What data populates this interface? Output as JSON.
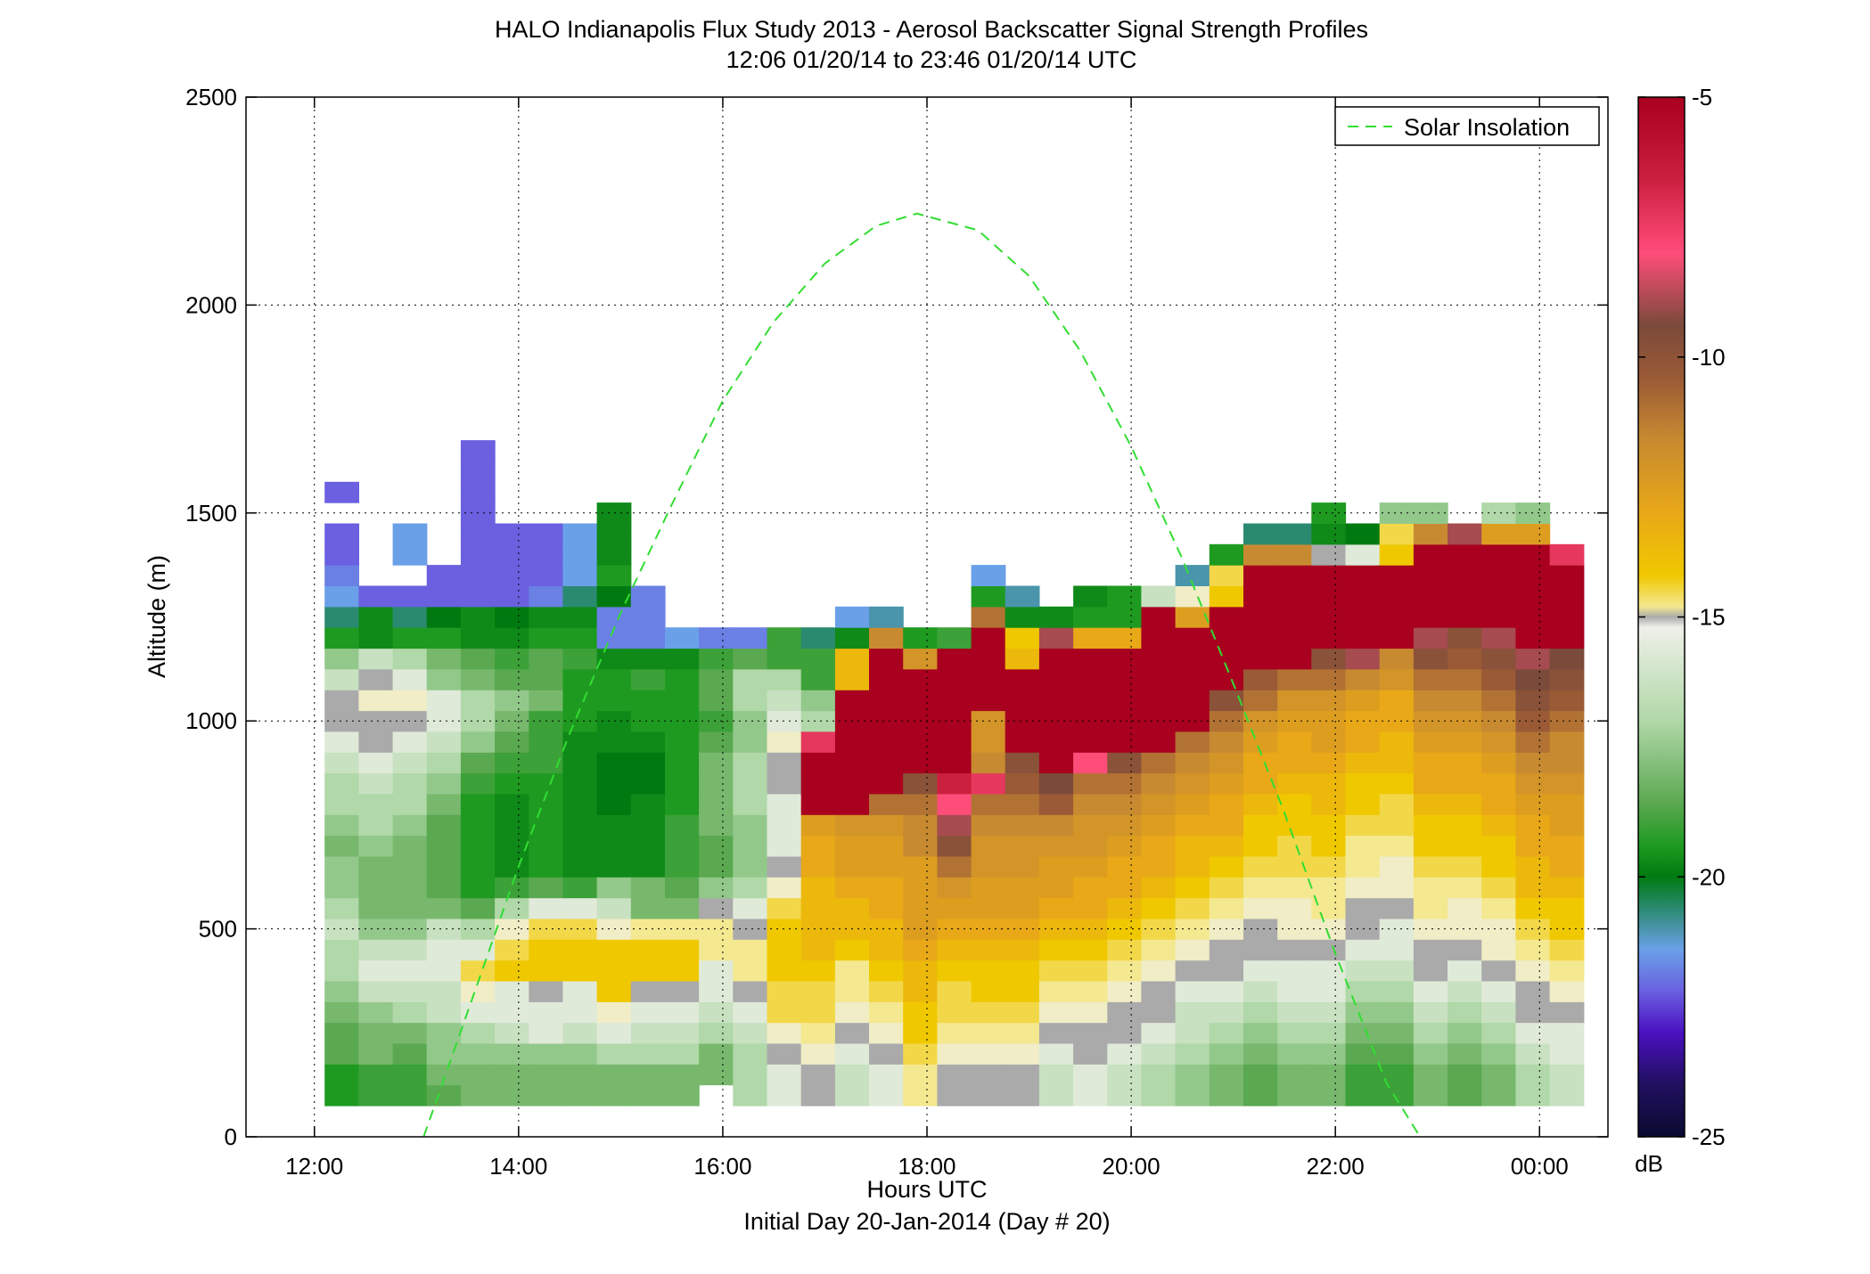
{
  "chart_data": {
    "type": "heatmap",
    "title": "HALO Indianapolis Flux Study 2013 - Aerosol Backscatter Signal Strength Profiles",
    "subtitle": "12:06 01/20/14 to 23:46 01/20/14  UTC",
    "xlabel": "Hours UTC",
    "xlabel2": "Initial Day 20-Jan-2014 (Day # 20)",
    "ylabel": "Altitude (m)",
    "xlim": [
      11.33,
      24.67
    ],
    "ylim": [
      0,
      2500
    ],
    "x_ticks": [
      12,
      14,
      16,
      18,
      20,
      22,
      24
    ],
    "x_tick_labels": [
      "12:00",
      "14:00",
      "16:00",
      "18:00",
      "20:00",
      "22:00",
      "00:00"
    ],
    "y_ticks": [
      0,
      500,
      1000,
      1500,
      2000,
      2500
    ],
    "y_tick_labels": [
      "0",
      "500",
      "1000",
      "1500",
      "2000",
      "2500"
    ],
    "grid": true,
    "legend": {
      "position": "top-right",
      "entries": [
        "Solar Insolation"
      ]
    },
    "colorbar": {
      "label": "dB",
      "range": [
        -25,
        -5
      ],
      "ticks": [
        -5,
        -10,
        -15,
        -20,
        -25
      ],
      "tick_labels": [
        "-5",
        "-10",
        "-15",
        "-20",
        "-25"
      ]
    },
    "series": [
      {
        "name": "Solar Insolation",
        "style": "dashed",
        "color": "#33dd33",
        "x": [
          13.07,
          13.5,
          14,
          14.5,
          15,
          15.5,
          16,
          16.5,
          17,
          17.5,
          17.9,
          18.5,
          19,
          19.5,
          20,
          20.5,
          21,
          21.5,
          22,
          22.5,
          22.83
        ],
        "y": [
          0,
          300,
          650,
          970,
          1260,
          1520,
          1770,
          1960,
          2100,
          2190,
          2220,
          2180,
          2070,
          1890,
          1660,
          1390,
          1090,
          780,
          440,
          130,
          0
        ]
      }
    ],
    "heatmap_grid": {
      "x_start": 12.1,
      "bin_hours": 0.3333,
      "y_start": 75,
      "bin_m": 50,
      "columns": [
        [
          -19,
          -19,
          -18,
          -18,
          -17.5,
          -17,
          -16.5,
          -16.5,
          -16,
          -16.5,
          -17,
          -17,
          -17.5,
          -17,
          -16.5,
          -16.5,
          -16,
          -15.5,
          -15,
          -15,
          -16,
          -17,
          -19,
          -20.5,
          -21.5,
          -22,
          -22.5,
          -22.5,
          null,
          -22.5
        ],
        [
          -18.5,
          -18.5,
          -17.5,
          -17.5,
          -17,
          -16,
          -15.5,
          -16,
          -17,
          -17.5,
          -17.5,
          -17.5,
          -17,
          -16.5,
          -16.5,
          -16,
          -15.5,
          -15,
          -15,
          -14.5,
          -15,
          -16,
          -19.5,
          -19.5,
          -22.5
        ],
        [
          -18.5,
          -18.5,
          -18,
          -17.5,
          -16.5,
          -16,
          -15.5,
          -16,
          -17,
          -17.5,
          -17.5,
          -17.5,
          -17.5,
          -17,
          -16.5,
          -16.5,
          -16,
          -15.5,
          -15,
          -14.5,
          -15.5,
          -16.5,
          -19,
          -20.5,
          -22.5,
          null,
          -21.5,
          -21.5
        ],
        [
          -18,
          -17.5,
          -17,
          -17,
          -16,
          -16,
          -15.5,
          -15.5,
          -16,
          -17.5,
          -18,
          -18,
          -18,
          -18,
          -17.5,
          -17,
          -16.5,
          -16,
          -15.5,
          -15.5,
          -17,
          -17.5,
          -19,
          -20,
          -22.5,
          -22.5
        ],
        [
          -17.5,
          -17.5,
          -17,
          -16.5,
          -15.5,
          -14.5,
          -13.5,
          -15.5,
          -16.5,
          -18,
          -19,
          -19,
          -19,
          -19,
          -19,
          -18.5,
          -18,
          -17,
          -16.5,
          -16.5,
          -17.5,
          -18,
          -19.5,
          -19.5,
          -22.5,
          -22.5,
          -22.5,
          -22.5,
          -22.5,
          -22.5,
          -22.5,
          -22.5
        ],
        [
          -17.5,
          -17.5,
          -17,
          -16,
          -15.5,
          -15.5,
          -13,
          -13.5,
          -14.5,
          -16.5,
          -18.5,
          -19.5,
          -19.5,
          -19.5,
          -19.5,
          -19,
          -18.5,
          -18,
          -17.5,
          -17,
          -18,
          -18.5,
          -19.5,
          -20,
          -22.5,
          -22.5,
          -22.5,
          -22.5
        ],
        [
          -17.5,
          -17.5,
          -17,
          -15.5,
          -15.5,
          -15,
          -13,
          -13,
          -13.5,
          -15.5,
          -18,
          -19,
          -19,
          -19,
          -19,
          -19,
          -18.5,
          -18.5,
          -18.5,
          -17.5,
          -18,
          -18,
          -19,
          -19.5,
          -22,
          -22.5,
          -22.5,
          -22.5
        ],
        [
          -17.5,
          -17.5,
          -17,
          -16,
          -15.5,
          -15.5,
          -13,
          -13,
          -13.5,
          -15.5,
          -18.5,
          -19.5,
          -19.5,
          -19.5,
          -19.5,
          -19.5,
          -19.5,
          -19.5,
          -19,
          -19,
          -19,
          -18.5,
          -19,
          -19.5,
          -20.5,
          -21.5,
          -21.5,
          -21.5
        ],
        [
          -17.5,
          -17.5,
          -16.5,
          -15.5,
          -14.5,
          -13,
          -13,
          -13,
          -14.5,
          -16,
          -17,
          -19.5,
          -19.5,
          -19.5,
          -20,
          -20,
          -20,
          -19.5,
          -19.5,
          -19,
          -19,
          -19.5,
          -22,
          -22,
          -20,
          -19,
          -19.5,
          -19.5,
          -19.5
        ],
        [
          -17.5,
          -17.5,
          -16.5,
          -16,
          -15.5,
          -15,
          -13,
          -13,
          -14,
          -17.5,
          -17.5,
          -19.5,
          -19.5,
          -19.5,
          -19.5,
          -20,
          -20,
          -19.5,
          -19,
          -19,
          -18.5,
          -19.5,
          -22,
          -22,
          -22
        ],
        [
          -17.5,
          -17.5,
          -16.5,
          -16,
          -15.5,
          -15,
          -13,
          -13,
          -14,
          -17.5,
          -18,
          -18.5,
          -18.5,
          -18.5,
          -19,
          -19,
          -19,
          -19,
          -19,
          -19,
          -19,
          -19.5,
          -21.5
        ],
        [
          null,
          -17.5,
          -17.5,
          -16.5,
          -16,
          -15.5,
          -15.5,
          -14,
          -14,
          -15,
          -17,
          -18,
          -18,
          -17.5,
          -17.5,
          -17.5,
          -17.5,
          -18,
          -18.5,
          -18,
          -18,
          -18.5,
          -22
        ],
        [
          -16.5,
          -16.5,
          -16.5,
          -16,
          -15.5,
          -15,
          -14,
          -14,
          -15,
          -15.5,
          -16.5,
          -17,
          -17,
          -17,
          -16.5,
          -16.5,
          -16.5,
          -17,
          -17,
          -16.5,
          -16.5,
          -18,
          -22
        ],
        [
          -15.5,
          -15.5,
          -15,
          -14.5,
          -13.5,
          -13.5,
          -13,
          -13,
          -13,
          -13.5,
          -14.5,
          -15,
          -15.5,
          -15.5,
          -15.5,
          -15,
          -15,
          -14.5,
          -15.5,
          -16,
          -16.5,
          -18.5,
          -18.5
        ],
        [
          -15,
          -15,
          -14.5,
          -14,
          -13.5,
          -13.5,
          -13,
          -12.5,
          -12.5,
          -12.5,
          -12.5,
          -12,
          -12,
          -11.5,
          -5,
          -5,
          -5,
          -6.5,
          -16.5,
          -17,
          -18.5,
          -18.5,
          -20.5
        ],
        [
          -16,
          -16,
          -15.5,
          -15,
          -14.5,
          -14,
          -14,
          -13,
          -12.5,
          -12.5,
          -12,
          -11.5,
          -11.5,
          -11,
          -5,
          -5,
          -5,
          -5,
          -5,
          -5,
          -12.5,
          -12.5,
          -19.5,
          -21.5
        ],
        [
          -15.5,
          -15.5,
          -15,
          -14.5,
          -14,
          -13.5,
          -13,
          -12.5,
          -12.5,
          -12,
          -12,
          -11.5,
          -11.5,
          -11,
          -10,
          -5,
          -5,
          -5,
          -5,
          -5,
          -5,
          -5,
          -10.5,
          -21
        ],
        [
          -14,
          -14,
          -13.5,
          -13,
          -13,
          -12.5,
          -12.5,
          -12,
          -11.5,
          -11.5,
          -11.5,
          -11.5,
          -10.5,
          -10.5,
          -10,
          -9,
          -5,
          -5,
          -5,
          -5,
          -5,
          -11,
          -19
        ],
        [
          -15,
          -15,
          -14.5,
          -14,
          -13.5,
          -13.5,
          -13,
          -12.5,
          -12,
          -11.5,
          -11,
          -10,
          -9,
          -8,
          -7,
          -6,
          -5,
          -5,
          -5,
          -5,
          -5,
          -5,
          -18.5
        ],
        [
          -15,
          -15,
          -14.5,
          -14,
          -13.5,
          -13,
          -13,
          -12.5,
          -12,
          -11.5,
          -11.5,
          -11,
          -11,
          -10.5,
          -10,
          -6.5,
          -10.5,
          -11,
          -11,
          -5,
          -5,
          -5,
          -5,
          -10,
          -19,
          -21.5
        ],
        [
          -15,
          -15,
          -14.5,
          -14,
          -13.5,
          -13,
          -13,
          -12.5,
          -12,
          -11.5,
          -11.5,
          -11,
          -11,
          -10.5,
          -10,
          -9.5,
          -9,
          -5,
          -5,
          -5,
          -5,
          -12.5,
          -13,
          -19.5,
          -21
        ],
        [
          -16,
          -16,
          -15.5,
          -15,
          -14.5,
          -14,
          -13.5,
          -13,
          -12.5,
          -12,
          -11.5,
          -11.5,
          -11,
          -10.5,
          -9.5,
          -8.5,
          -5,
          -5,
          -5,
          -5,
          -5,
          -5,
          -8,
          -19.5
        ],
        [
          -15.5,
          -15.5,
          -15,
          -15,
          -14.5,
          -14,
          -13.5,
          -13,
          -12.5,
          -12,
          -12,
          -11.5,
          -11,
          -11,
          -10.5,
          -10,
          -7,
          -5,
          -5,
          -5,
          -5,
          -5,
          -12,
          -19,
          -19.5
        ],
        [
          -16,
          -16,
          -15.5,
          -15,
          -15,
          -14.5,
          -14,
          -13.5,
          -13,
          -12.5,
          -12,
          -12,
          -11.5,
          -11,
          -10.5,
          -10,
          -9,
          -5,
          -5,
          -5,
          -5,
          -5,
          -12,
          -19,
          -19
        ],
        [
          -16.5,
          -16.5,
          -16,
          -15.5,
          -15,
          -15,
          -14.5,
          -14,
          -13.5,
          -13,
          -12.5,
          -12,
          -12,
          -11.5,
          -11,
          -10.5,
          -10,
          -5,
          -5,
          -5,
          -5,
          -5,
          -5,
          -5,
          -16
        ],
        [
          -17,
          -17,
          -16.5,
          -16,
          -16,
          -15.5,
          -15,
          -14.5,
          -14,
          -13.5,
          -13,
          -12.5,
          -12.5,
          -12,
          -11.5,
          -11,
          -10.5,
          -10,
          -5,
          -5,
          -5,
          -5,
          -5,
          -11.5,
          -14.5,
          -21
        ],
        [
          -17.5,
          -17.5,
          -17,
          -16.5,
          -16,
          -15.5,
          -15,
          -15,
          -14.5,
          -14,
          -13.5,
          -13,
          -12.5,
          -12,
          -12,
          -11.5,
          -11,
          -10.5,
          -10,
          -9,
          -5,
          -5,
          -5,
          -5,
          -13,
          -13.5,
          -19
        ],
        [
          -18,
          -18,
          -17.5,
          -17,
          -16.5,
          -16,
          -15.5,
          -15,
          -15,
          -14.5,
          -14,
          -13.5,
          -13,
          -13,
          -12.5,
          -12,
          -12,
          -11.5,
          -11,
          -10,
          -9.5,
          -5,
          -5,
          -5,
          -5,
          -5,
          -10.5,
          -20.5
        ],
        [
          -17.5,
          -17.5,
          -17,
          -16.5,
          -16,
          -15.5,
          -15.5,
          -15,
          -14.5,
          -14.5,
          -14,
          -13.5,
          -13.5,
          -13,
          -13,
          -12.5,
          -12,
          -12,
          -11.5,
          -11,
          -10,
          -5,
          -5,
          -5,
          -5,
          -5,
          -10.5,
          -20.5
        ],
        [
          -17.5,
          -17.5,
          -17,
          -16.5,
          -16,
          -15.5,
          -15.5,
          -15,
          -14.5,
          -14,
          -14,
          -13.5,
          -13,
          -13,
          -12.5,
          -12.5,
          -12,
          -11.5,
          -11.5,
          -11,
          -10,
          -9,
          -5,
          -5,
          -5,
          -5,
          -15,
          -19.5,
          -19
        ],
        [
          -18.5,
          -18.5,
          -18,
          -17.5,
          -17,
          -16.5,
          -16,
          -15.5,
          -15,
          -15,
          -14.5,
          -14,
          -14,
          -13.5,
          -13,
          -13,
          -12.5,
          -12,
          -12,
          -11.5,
          -10.5,
          -8,
          -5,
          -5,
          -5,
          -5,
          -15.5,
          -20
        ],
        [
          -18.5,
          -18.5,
          -18,
          -17.5,
          -17,
          -16.5,
          -16,
          -15.5,
          -15.5,
          -15,
          -14.5,
          -14.5,
          -14,
          -13.5,
          -13.5,
          -13,
          -12.5,
          -12.5,
          -12,
          -12,
          -11,
          -10.5,
          -5,
          -5,
          -5,
          -5,
          -13,
          -13.5,
          -17
        ],
        [
          -17.5,
          -17.5,
          -17,
          -16.5,
          -16,
          -15.5,
          -15,
          -15,
          -14.5,
          -14,
          -14,
          -13.5,
          -13,
          -13,
          -12.5,
          -12,
          -12,
          -11.5,
          -11,
          -10.5,
          -10,
          -9,
          -8,
          -5,
          -5,
          -5,
          -5,
          -10.5,
          -17
        ],
        [
          -18,
          -18,
          -17.5,
          -17,
          -16.5,
          -16,
          -15.5,
          -15,
          -14.5,
          -14.5,
          -14,
          -13.5,
          -13,
          -13,
          -12.5,
          -12,
          -12,
          -11.5,
          -11,
          -10.5,
          -10,
          -9.5,
          -9,
          -5,
          -5,
          -5,
          -5,
          -8
        ],
        [
          -17.5,
          -17.5,
          -17,
          -16.5,
          -16,
          -15.5,
          -15,
          -14.5,
          -14.5,
          -14,
          -13.5,
          -13,
          -13,
          -12.5,
          -12,
          -12,
          -11.5,
          -11,
          -10.5,
          -10,
          -9.5,
          -9,
          -8,
          -5,
          -5,
          -5,
          -5,
          -11.5,
          -16.5
        ],
        [
          -16.5,
          -16.5,
          -16,
          -15.5,
          -15,
          -15,
          -14.5,
          -14,
          -13.5,
          -13,
          -12.5,
          -12.5,
          -12,
          -12,
          -11.5,
          -11,
          -10.5,
          -10,
          -9.5,
          -9,
          -8.5,
          -8,
          -5,
          -5,
          -5,
          -5,
          -5,
          -11.5,
          -17
        ],
        [
          -16,
          -16,
          -15.5,
          -15.5,
          -15,
          -14.5,
          -14,
          -13.5,
          -13,
          -13,
          -12.5,
          -12,
          -12,
          -11.5,
          -11.5,
          -11,
          -10.5,
          -10.5,
          -10,
          -9.5,
          -9,
          -8.5,
          -5,
          -5,
          -5,
          -5,
          -6.5
        ]
      ]
    }
  }
}
